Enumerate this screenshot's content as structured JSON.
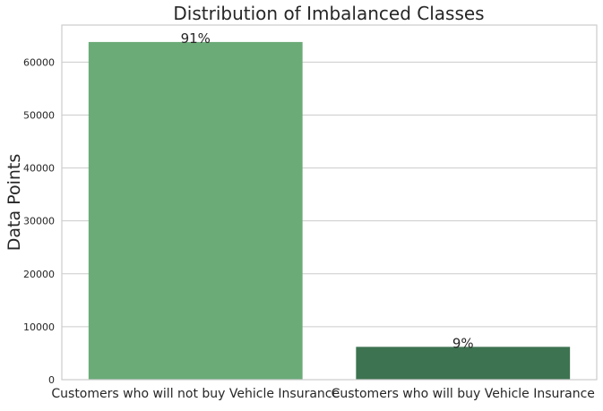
{
  "chart_data": {
    "type": "bar",
    "title": "Distribution of Imbalanced Classes",
    "xlabel": "",
    "ylabel": "Data Points",
    "categories": [
      "Customers who will not buy Vehicle Insurance",
      "Customers who will buy Vehicle Insurance"
    ],
    "values": [
      63800,
      6200
    ],
    "data_labels": [
      "91%",
      "9%"
    ],
    "colors": [
      "#6aab77",
      "#3d7350"
    ],
    "ylim": [
      0,
      67000
    ],
    "yticks": [
      0,
      10000,
      20000,
      30000,
      40000,
      50000,
      60000
    ],
    "ytick_labels": [
      "0",
      "10000",
      "20000",
      "30000",
      "40000",
      "50000",
      "60000"
    ],
    "grid": true
  }
}
